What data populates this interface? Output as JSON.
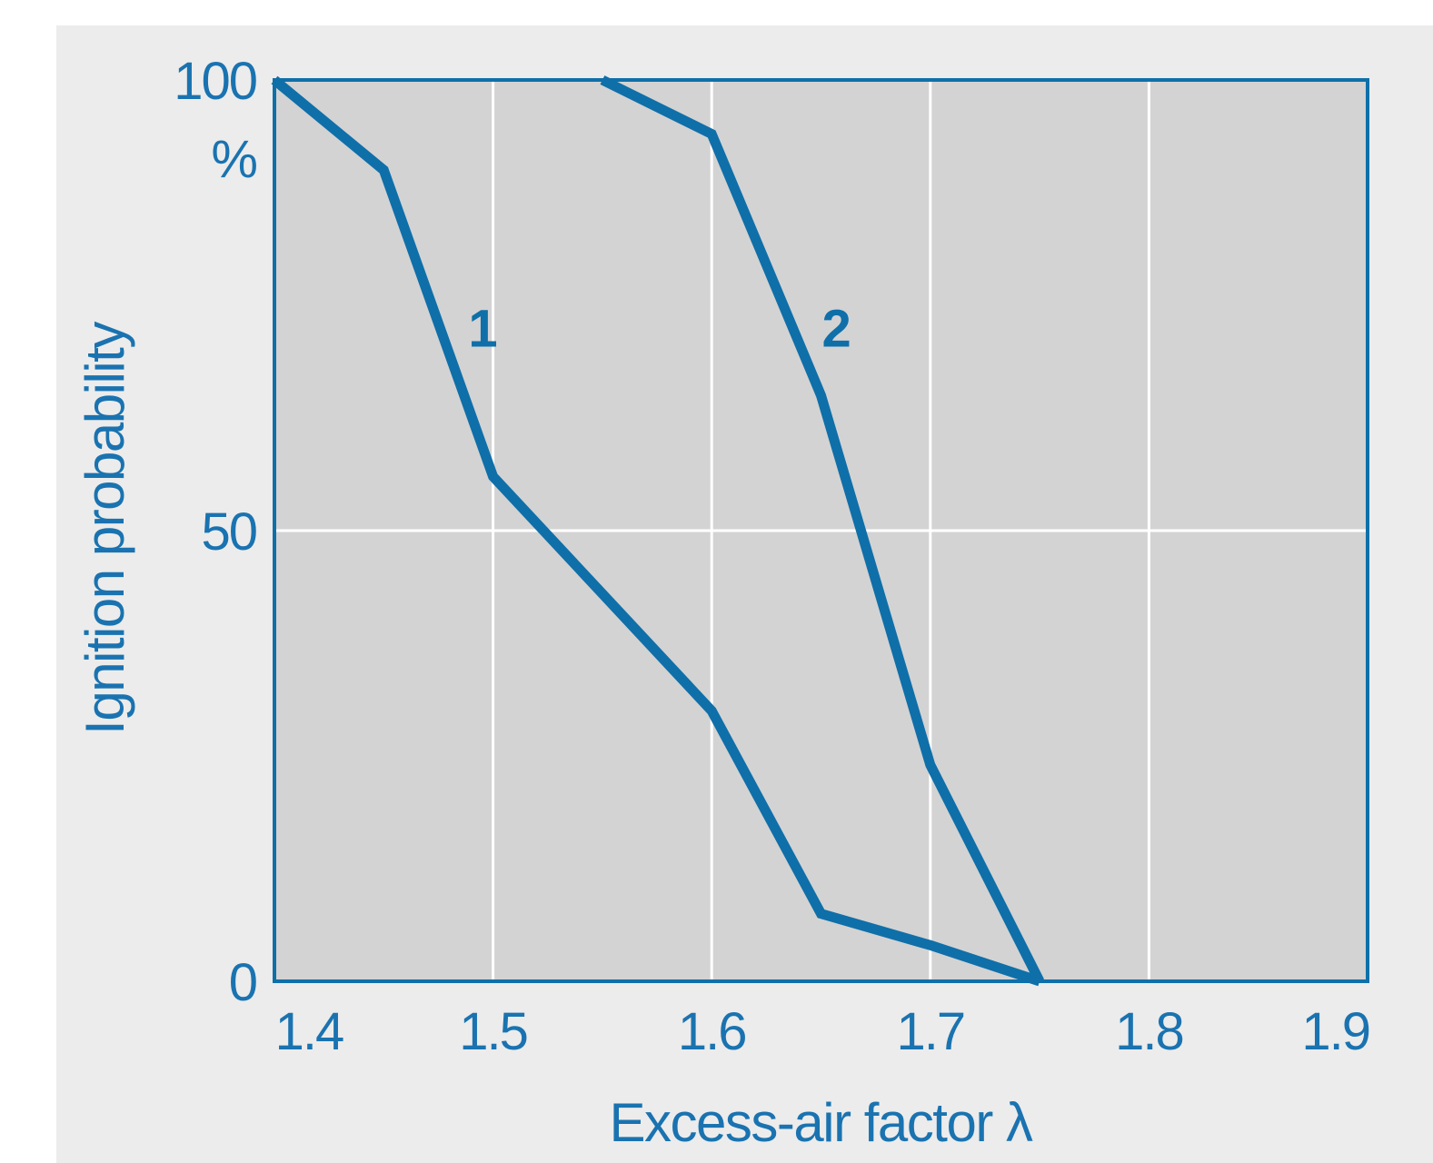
{
  "colors": {
    "outer_background": "#ececec",
    "plot_background": "#d3d3d3",
    "grid": "#ffffff",
    "accent": "#0f6fa9",
    "text": "#1a73b0"
  },
  "chart_data": {
    "type": "line",
    "title": "",
    "xlabel": "Excess-air factor λ",
    "ylabel": "Ignition probability",
    "y_unit": "%",
    "xlim": [
      1.4,
      1.9
    ],
    "ylim": [
      0,
      100
    ],
    "x_ticks": [
      1.4,
      1.5,
      1.6,
      1.7,
      1.8,
      1.9
    ],
    "x_tick_labels": [
      "1.4",
      "1.5",
      "1.6",
      "1.7",
      "1.8",
      "1.9"
    ],
    "y_ticks": [
      0,
      50,
      100
    ],
    "y_tick_labels": [
      "0",
      "50",
      "100"
    ],
    "grid": true,
    "legend": "none",
    "series": [
      {
        "name": "1",
        "x": [
          1.4,
          1.45,
          1.5,
          1.6,
          1.65,
          1.7,
          1.75
        ],
        "y": [
          100,
          90,
          56,
          30,
          7.5,
          4,
          0
        ]
      },
      {
        "name": "2",
        "x": [
          1.55,
          1.6,
          1.65,
          1.7,
          1.75
        ],
        "y": [
          100,
          94,
          65,
          24,
          0
        ]
      }
    ]
  }
}
